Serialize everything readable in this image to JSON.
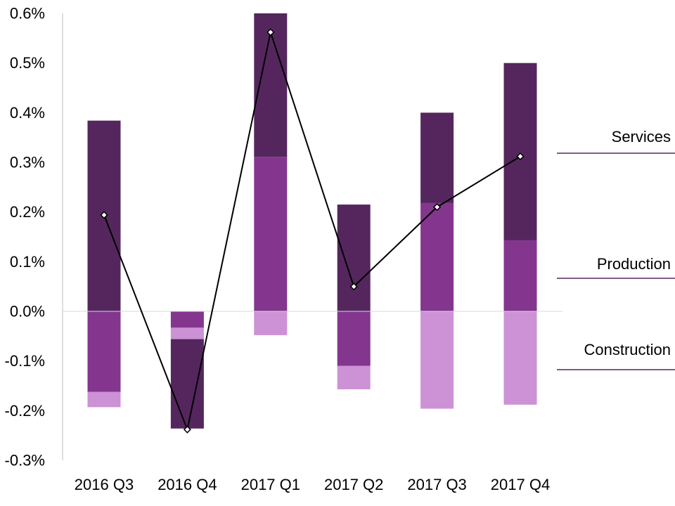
{
  "chart_data": {
    "type": "bar",
    "stacked": true,
    "categories": [
      "2016 Q3",
      "2016 Q4",
      "2017 Q1",
      "2017 Q2",
      "2017 Q3",
      "2017 Q4"
    ],
    "ylim": [
      -0.3,
      0.6
    ],
    "yticks": [
      "0.6%",
      "0.5%",
      "0.4%",
      "0.3%",
      "0.2%",
      "0.1%",
      "0.0%",
      "-0.1%",
      "-0.2%",
      "-0.3%"
    ],
    "ytick_values": [
      0.6,
      0.5,
      0.4,
      0.3,
      0.2,
      0.1,
      0.0,
      -0.1,
      -0.2,
      -0.3
    ],
    "series": [
      {
        "name": "Production",
        "color": "#84368f",
        "values": [
          -0.162,
          -0.033,
          0.311,
          -0.11,
          0.218,
          0.143
        ]
      },
      {
        "name": "Construction",
        "color": "#cc92d5",
        "values": [
          -0.031,
          -0.023,
          -0.048,
          -0.047,
          -0.196,
          -0.188
        ]
      },
      {
        "name": "Services",
        "color": "#55265e",
        "values": [
          0.384,
          -0.18,
          0.289,
          0.215,
          0.182,
          0.357
        ]
      }
    ],
    "line": {
      "color": "#000000",
      "marker": "diamond",
      "values": [
        0.194,
        -0.238,
        0.562,
        0.05,
        0.21,
        0.312
      ]
    },
    "legend": {
      "position": "right",
      "line_color": "#55265e"
    },
    "grid": false
  }
}
